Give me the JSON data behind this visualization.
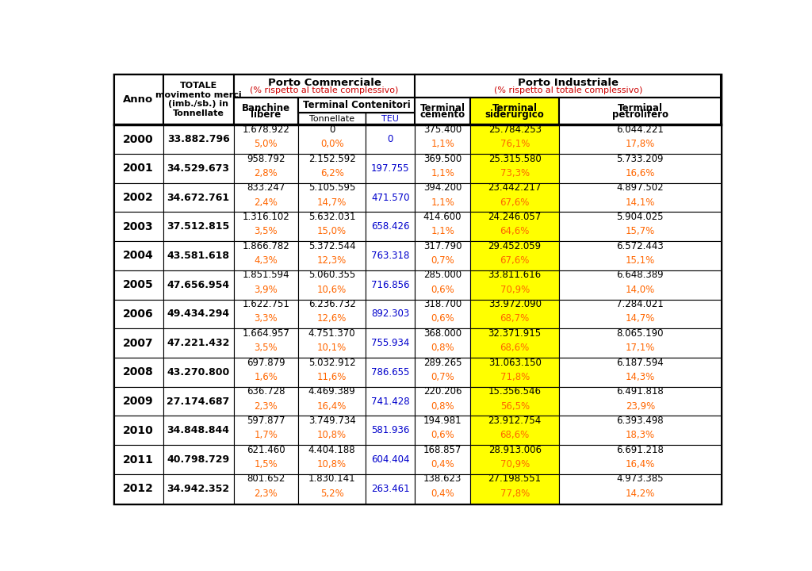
{
  "col_red": "#cc0000",
  "col_blue": "#0000cc",
  "col_orange": "#ff6600",
  "col_yellow_bg": "#ffff00",
  "years": [
    "2000",
    "2001",
    "2002",
    "2003",
    "2004",
    "2005",
    "2006",
    "2007",
    "2008",
    "2009",
    "2010",
    "2011",
    "2012"
  ],
  "totale": [
    "33.882.796",
    "34.529.673",
    "34.672.761",
    "37.512.815",
    "43.581.618",
    "47.656.954",
    "49.434.294",
    "47.221.432",
    "43.270.800",
    "27.174.687",
    "34.848.844",
    "40.798.729",
    "34.942.352"
  ],
  "banchine_val": [
    "1.678.922",
    "958.792",
    "833.247",
    "1.316.102",
    "1.866.782",
    "1.851.594",
    "1.622.751",
    "1.664.957",
    "697.879",
    "636.728",
    "597.877",
    "621.460",
    "801.652"
  ],
  "banchine_pct": [
    "5,0%",
    "2,8%",
    "2,4%",
    "3,5%",
    "4,3%",
    "3,9%",
    "3,3%",
    "3,5%",
    "1,6%",
    "2,3%",
    "1,7%",
    "1,5%",
    "2,3%"
  ],
  "tc_tonn_val": [
    "0",
    "2.152.592",
    "5.105.595",
    "5.632.031",
    "5.372.544",
    "5.060.355",
    "6.236.732",
    "4.751.370",
    "5.032.912",
    "4.469.389",
    "3.749.734",
    "4.404.188",
    "1.830.141"
  ],
  "tc_tonn_pct": [
    "0,0%",
    "6,2%",
    "14,7%",
    "15,0%",
    "12,3%",
    "10,6%",
    "12,6%",
    "10,1%",
    "11,6%",
    "16,4%",
    "10,8%",
    "10,8%",
    "5,2%"
  ],
  "teu_val": [
    "0",
    "197.755",
    "471.570",
    "658.426",
    "763.318",
    "716.856",
    "892.303",
    "755.934",
    "786.655",
    "741.428",
    "581.936",
    "604.404",
    "263.461"
  ],
  "cemento_val": [
    "375.400",
    "369.500",
    "394.200",
    "414.600",
    "317.790",
    "285.000",
    "318.700",
    "368.000",
    "289.265",
    "220.206",
    "194.981",
    "168.857",
    "138.623"
  ],
  "cemento_pct": [
    "1,1%",
    "1,1%",
    "1,1%",
    "1,1%",
    "0,7%",
    "0,6%",
    "0,6%",
    "0,8%",
    "0,7%",
    "0,8%",
    "0,6%",
    "0,4%",
    "0,4%"
  ],
  "siderurgico_val": [
    "25.784.253",
    "25.315.580",
    "23.442.217",
    "24.246.057",
    "29.452.059",
    "33.811.616",
    "33.972.090",
    "32.371.915",
    "31.063.150",
    "15.356.546",
    "23.912.754",
    "28.913.006",
    "27.198.551"
  ],
  "siderurgico_pct": [
    "76,1%",
    "73,3%",
    "67,6%",
    "64,6%",
    "67,6%",
    "70,9%",
    "68,7%",
    "68,6%",
    "71,8%",
    "56,5%",
    "68,6%",
    "70,9%",
    "77,8%"
  ],
  "petrolifero_val": [
    "6.044.221",
    "5.733.209",
    "4.897.502",
    "5.904.025",
    "6.572.443",
    "6.648.389",
    "7.284.021",
    "8.065.190",
    "6.187.594",
    "6.491.818",
    "6.393.498",
    "6.691.218",
    "4.973.385"
  ],
  "petrolifero_pct": [
    "17,8%",
    "16,6%",
    "14,1%",
    "15,7%",
    "15,1%",
    "14,0%",
    "14,7%",
    "17,1%",
    "14,3%",
    "23,9%",
    "18,3%",
    "16,4%",
    "14,2%"
  ]
}
